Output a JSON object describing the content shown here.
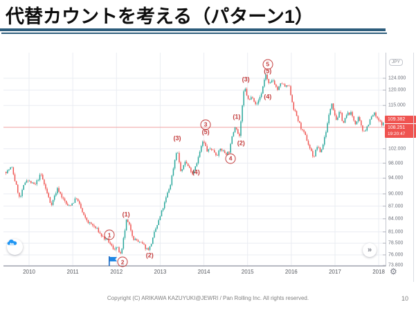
{
  "slide": {
    "title": "代替カウントを考える（パターン1）",
    "footer": "Copyright (C) ARIKAWA KAZUYUKI@JEWRI / Pan Rolling Inc. All rights reserved.",
    "page_number": "10"
  },
  "colors": {
    "title_rule": "#2d5d7c",
    "up_candle": "#26a69a",
    "down_candle": "#ef5350",
    "annotation_red": "#c23a3a",
    "price_tag_bg": "#ef5350",
    "grid": "#e9ecf2",
    "current_price_line": "#f1a4a4",
    "flag_blue": "#1e88e5",
    "icon_blue": "#2196f3"
  },
  "chart_data": {
    "type": "candlestick",
    "title": "USD/JPY long-term candlestick chart with Elliott wave count (pattern 1)",
    "x_axis": {
      "ticks": [
        {
          "label": "2010",
          "year": 2010
        },
        {
          "label": "2011",
          "year": 2011
        },
        {
          "label": "2012",
          "year": 2012
        },
        {
          "label": "2013",
          "year": 2013
        },
        {
          "label": "2014",
          "year": 2014
        },
        {
          "label": "2015",
          "year": 2015
        },
        {
          "label": "2016",
          "year": 2016
        },
        {
          "label": "2017",
          "year": 2017
        },
        {
          "label": "2018",
          "year": 2018
        }
      ]
    },
    "y_axis": {
      "currency_label": "JPY",
      "scale": "log",
      "ticks": [
        {
          "label": "124.000",
          "value": 124
        },
        {
          "label": "120.000",
          "value": 120
        },
        {
          "label": "115.000",
          "value": 115
        },
        {
          "label": "102.000",
          "value": 102
        },
        {
          "label": "98.000",
          "value": 98
        },
        {
          "label": "94.000",
          "value": 94
        },
        {
          "label": "90.000",
          "value": 90
        },
        {
          "label": "87.000",
          "value": 87
        },
        {
          "label": "84.000",
          "value": 84
        },
        {
          "label": "81.000",
          "value": 81
        },
        {
          "label": "78.500",
          "value": 78.5
        },
        {
          "label": "76.000",
          "value": 76
        },
        {
          "label": "73.800",
          "value": 73.8
        }
      ]
    },
    "price_tags": [
      {
        "value": "109.382"
      },
      {
        "value": "108.251",
        "time": "19:20:47"
      }
    ],
    "current_price_line": 108.251,
    "price_path": [
      [
        2009.46,
        95.7
      ],
      [
        2009.62,
        96.8
      ],
      [
        2009.81,
        88.6
      ],
      [
        2009.97,
        93.9
      ],
      [
        2010.16,
        91.8
      ],
      [
        2010.29,
        95.0
      ],
      [
        2010.52,
        87.4
      ],
      [
        2010.68,
        91.4
      ],
      [
        2010.92,
        86.6
      ],
      [
        2011.11,
        89.1
      ],
      [
        2011.31,
        83.7
      ],
      [
        2011.55,
        81.8
      ],
      [
        2011.71,
        79.9
      ],
      [
        2011.84,
        78.7
      ],
      [
        2011.95,
        77.2
      ],
      [
        2012.03,
        77.8
      ],
      [
        2012.14,
        75.6
      ],
      [
        2012.26,
        83.4
      ],
      [
        2012.42,
        79.9
      ],
      [
        2012.58,
        78.4
      ],
      [
        2012.71,
        77.2
      ],
      [
        2012.79,
        77.5
      ],
      [
        2012.95,
        81.8
      ],
      [
        2013.1,
        86.3
      ],
      [
        2013.26,
        91.8
      ],
      [
        2013.42,
        102.4
      ],
      [
        2013.52,
        95.0
      ],
      [
        2013.61,
        98.7
      ],
      [
        2013.71,
        96.5
      ],
      [
        2013.78,
        95.7
      ],
      [
        2013.9,
        99.5
      ],
      [
        2014.02,
        104.0
      ],
      [
        2014.12,
        101.1
      ],
      [
        2014.21,
        102.0
      ],
      [
        2014.32,
        100.7
      ],
      [
        2014.43,
        101.9
      ],
      [
        2014.53,
        100.7
      ],
      [
        2014.62,
        101.4
      ],
      [
        2014.77,
        109.6
      ],
      [
        2014.85,
        105.5
      ],
      [
        2014.97,
        120.6
      ],
      [
        2015.07,
        116.1
      ],
      [
        2015.16,
        117.9
      ],
      [
        2015.26,
        115.7
      ],
      [
        2015.35,
        118.4
      ],
      [
        2015.46,
        125.7
      ],
      [
        2015.54,
        121.3
      ],
      [
        2015.64,
        123.0
      ],
      [
        2015.73,
        120.2
      ],
      [
        2015.83,
        122.0
      ],
      [
        2015.92,
        120.6
      ],
      [
        2015.99,
        121.1
      ],
      [
        2016.1,
        114.5
      ],
      [
        2016.19,
        110.8
      ],
      [
        2016.27,
        108.1
      ],
      [
        2016.37,
        105.1
      ],
      [
        2016.46,
        102.7
      ],
      [
        2016.56,
        99.6
      ],
      [
        2016.64,
        102.7
      ],
      [
        2016.72,
        100.7
      ],
      [
        2016.79,
        104.0
      ],
      [
        2016.89,
        110.2
      ],
      [
        2016.98,
        116.3
      ],
      [
        2017.08,
        111.2
      ],
      [
        2017.16,
        112.9
      ],
      [
        2017.24,
        109.5
      ],
      [
        2017.32,
        111.7
      ],
      [
        2017.41,
        112.7
      ],
      [
        2017.51,
        109.5
      ],
      [
        2017.59,
        110.8
      ],
      [
        2017.68,
        106.7
      ],
      [
        2017.76,
        107.9
      ],
      [
        2017.86,
        110.8
      ],
      [
        2017.95,
        112.3
      ],
      [
        2018.03,
        110.2
      ],
      [
        2018.11,
        109.1
      ],
      [
        2018.16,
        109.4
      ]
    ],
    "annotations": {
      "circled": [
        {
          "n": "1",
          "year": 2011.84,
          "price": 80.3
        },
        {
          "n": "2",
          "year": 2012.14,
          "price": 74.5
        },
        {
          "n": "3",
          "year": 2014.04,
          "price": 109.0
        },
        {
          "n": "4",
          "year": 2014.61,
          "price": 99.2
        },
        {
          "n": "5",
          "year": 2015.46,
          "price": 128.9
        }
      ],
      "paren": [
        {
          "n": "1",
          "year": 2012.22,
          "price": 84.9
        },
        {
          "n": "2",
          "year": 2012.76,
          "price": 75.9
        },
        {
          "n": "3",
          "year": 2013.39,
          "price": 104.9
        },
        {
          "n": "4",
          "year": 2013.82,
          "price": 95.5
        },
        {
          "n": "5",
          "year": 2014.04,
          "price": 106.7
        },
        {
          "n": "1",
          "year": 2014.75,
          "price": 111.3
        },
        {
          "n": "2",
          "year": 2014.85,
          "price": 103.5
        },
        {
          "n": "3",
          "year": 2014.96,
          "price": 123.5
        },
        {
          "n": "4",
          "year": 2015.46,
          "price": 117.7
        },
        {
          "n": "5",
          "year": 2015.46,
          "price": 126.4
        }
      ]
    },
    "ui": {
      "goto_end_glyph": "»",
      "gear_glyph": "⚙"
    }
  }
}
